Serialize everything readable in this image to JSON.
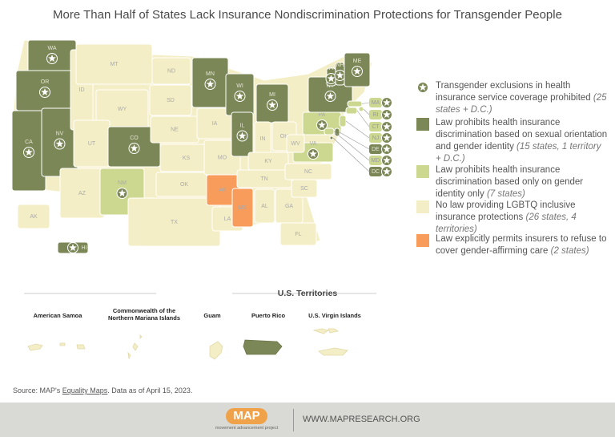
{
  "title": "More Than Half of States Lack Insurance Nondiscrimination Protections for Transgender People",
  "legend": [
    {
      "text": "Transgender exclusions in health insurance service coverage prohibited",
      "note": "(25 states + D.C.)",
      "color": "#7b8757"
    },
    {
      "text": "Law prohibits health insurance discrimination based on sexual orientation and gender identity",
      "note": "(15 states, 1 territory + D.C.)",
      "color": "#7b8757"
    },
    {
      "text": "Law prohibits health insurance discrimination based only on gender identity only",
      "note": "(7 states)",
      "color": "#ccd88f"
    },
    {
      "text": "No law providing LGBTQ inclusive insurance protections",
      "note": "(26 states, 4 territories)",
      "color": "#f4eec6"
    },
    {
      "text": "Law explicitly permits insurers to refuse to cover gender-affirming care",
      "note": "(2 states)",
      "color": "#f79c5b"
    }
  ],
  "states": [
    {
      "label": "WA",
      "legend": 1,
      "star": true
    },
    {
      "label": "OR",
      "legend": 1,
      "star": true
    },
    {
      "label": "CA",
      "legend": 1,
      "star": true
    },
    {
      "label": "NV",
      "legend": 1,
      "star": true
    },
    {
      "label": "ID",
      "legend": 3,
      "star": false
    },
    {
      "label": "MT",
      "legend": 3,
      "star": false
    },
    {
      "label": "WY",
      "legend": 3,
      "star": false
    },
    {
      "label": "UT",
      "legend": 3,
      "star": false
    },
    {
      "label": "AZ",
      "legend": 3,
      "star": false
    },
    {
      "label": "CO",
      "legend": 1,
      "star": true
    },
    {
      "label": "NM",
      "legend": 2,
      "star": true
    },
    {
      "label": "ND",
      "legend": 3,
      "star": false
    },
    {
      "label": "SD",
      "legend": 3,
      "star": false
    },
    {
      "label": "NE",
      "legend": 3,
      "star": false
    },
    {
      "label": "KS",
      "legend": 3,
      "star": false
    },
    {
      "label": "OK",
      "legend": 3,
      "star": false
    },
    {
      "label": "TX",
      "legend": 3,
      "star": false
    },
    {
      "label": "MN",
      "legend": 1,
      "star": true
    },
    {
      "label": "IA",
      "legend": 3,
      "star": false
    },
    {
      "label": "MO",
      "legend": 3,
      "star": false
    },
    {
      "label": "AR",
      "legend": 4,
      "star": false
    },
    {
      "label": "LA",
      "legend": 3,
      "star": false
    },
    {
      "label": "WI",
      "legend": 1,
      "star": true
    },
    {
      "label": "IL",
      "legend": 1,
      "star": true
    },
    {
      "label": "MS",
      "legend": 4,
      "star": false
    },
    {
      "label": "MI",
      "legend": 1,
      "star": true
    },
    {
      "label": "IN",
      "legend": 3,
      "star": false
    },
    {
      "label": "OH",
      "legend": 3,
      "star": false
    },
    {
      "label": "KY",
      "legend": 3,
      "star": false
    },
    {
      "label": "TN",
      "legend": 3,
      "star": false
    },
    {
      "label": "AL",
      "legend": 3,
      "star": false
    },
    {
      "label": "GA",
      "legend": 3,
      "star": false
    },
    {
      "label": "FL",
      "legend": 3,
      "star": false
    },
    {
      "label": "SC",
      "legend": 3,
      "star": false
    },
    {
      "label": "NC",
      "legend": 3,
      "star": false
    },
    {
      "label": "VA",
      "legend": 2,
      "star": true
    },
    {
      "label": "WV",
      "legend": 3,
      "star": false
    },
    {
      "label": "PA",
      "legend": 2,
      "star": true
    },
    {
      "label": "NY",
      "legend": 1,
      "star": true
    },
    {
      "label": "VT",
      "legend": 1,
      "star": true
    },
    {
      "label": "NH",
      "legend": 1,
      "star": true
    },
    {
      "label": "ME",
      "legend": 1,
      "star": true
    },
    {
      "label": "MA",
      "legend": 2,
      "star": true
    },
    {
      "label": "RI",
      "legend": 2,
      "star": true
    },
    {
      "label": "CT",
      "legend": 2,
      "star": true
    },
    {
      "label": "NJ",
      "legend": 2,
      "star": true
    },
    {
      "label": "DE",
      "legend": 1,
      "star": true
    },
    {
      "label": "MD",
      "legend": 2,
      "star": true
    },
    {
      "label": "DC",
      "legend": 1,
      "star": true
    },
    {
      "label": "AK",
      "legend": 3,
      "star": false
    },
    {
      "label": "HI",
      "legend": 1,
      "star": true
    }
  ],
  "territories": {
    "title": "U.S. Territories",
    "items": [
      {
        "name": "American Samoa",
        "legend": 3
      },
      {
        "name": "Commonwealth of the Northern Mariana Islands",
        "legend": 3
      },
      {
        "name": "Guam",
        "legend": 3
      },
      {
        "name": "Puerto Rico",
        "legend": 1
      },
      {
        "name": "U.S. Virgin Islands",
        "legend": 3
      }
    ]
  },
  "source": {
    "prefix": "Source: MAP's",
    "link": "Equality Maps",
    "suffix": ". Data as of April 15, 2023."
  },
  "footer": {
    "logo": "MAP",
    "tagline": "movement advancement project",
    "url": "WWW.MAPRESEARCH.ORG"
  }
}
